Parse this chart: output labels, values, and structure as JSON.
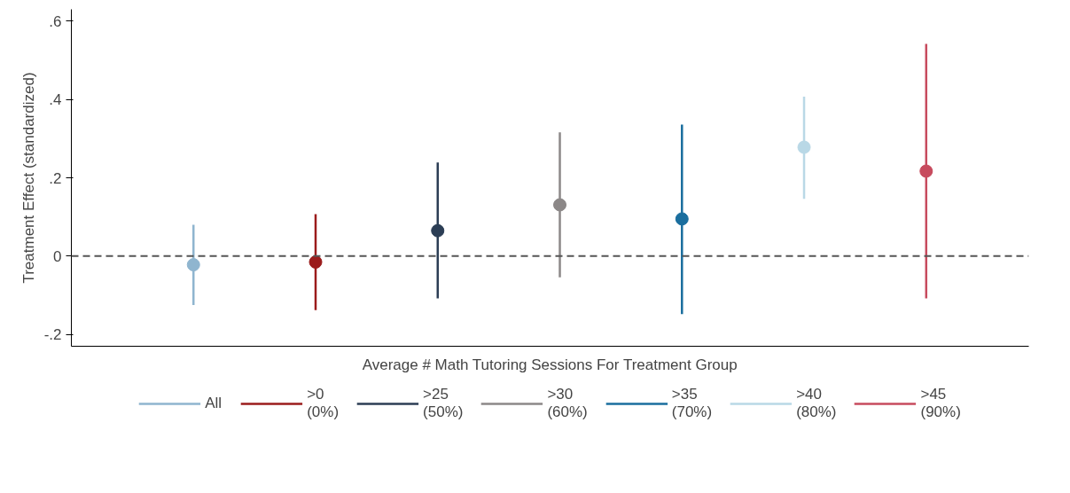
{
  "chart_data": {
    "type": "scatter",
    "xlabel": "Average # Math Tutoring Sessions For Treatment Group",
    "ylabel": "Treatment Effect (standardized)",
    "categories": [
      null,
      null,
      null,
      null,
      null,
      null,
      null
    ],
    "series": [
      {
        "name": "All",
        "color": "#8fb5cf",
        "values": [
          -0.022,
          null,
          null,
          null,
          null,
          null,
          null
        ],
        "errors": [
          [
            -0.125,
            0.08
          ],
          null,
          null,
          null,
          null,
          null,
          null
        ]
      },
      {
        "name": ">0\n(0%)",
        "color": "#9b1c1c",
        "values": [
          null,
          -0.015,
          null,
          null,
          null,
          null,
          null
        ],
        "errors": [
          null,
          [
            -0.138,
            0.107
          ],
          null,
          null,
          null,
          null,
          null
        ]
      },
      {
        "name": ">25\n(50%)",
        "color": "#2c3e55",
        "values": [
          null,
          null,
          0.065,
          null,
          null,
          null,
          null
        ],
        "errors": [
          null,
          null,
          [
            -0.108,
            0.239
          ],
          null,
          null,
          null,
          null
        ]
      },
      {
        "name": ">30\n(60%)",
        "color": "#8c8888",
        "values": [
          null,
          null,
          null,
          0.131,
          null,
          null,
          null
        ],
        "errors": [
          null,
          null,
          null,
          [
            -0.054,
            0.316
          ],
          null,
          null,
          null
        ]
      },
      {
        "name": ">35\n(70%)",
        "color": "#1a6e9e",
        "values": [
          null,
          null,
          null,
          null,
          0.095,
          null,
          null
        ],
        "errors": [
          null,
          null,
          null,
          null,
          [
            -0.148,
            0.336
          ],
          null,
          null
        ]
      },
      {
        "name": ">40\n(80%)",
        "color": "#b9d8e6",
        "values": [
          null,
          null,
          null,
          null,
          null,
          0.278,
          null
        ],
        "errors": [
          null,
          null,
          null,
          null,
          null,
          [
            0.146,
            0.407
          ],
          null
        ]
      },
      {
        "name": ">45\n(90%)",
        "color": "#c74b5e",
        "values": [
          null,
          null,
          null,
          null,
          null,
          null,
          0.217
        ],
        "errors": [
          null,
          null,
          null,
          null,
          null,
          null,
          [
            -0.108,
            0.542
          ]
        ]
      }
    ],
    "ylim": [
      -0.23,
      0.63
    ],
    "yticks": [
      {
        "value": -0.2,
        "label": "-.2"
      },
      0,
      {
        "value": 0.2,
        "label": ".2"
      },
      {
        "value": 0.4,
        "label": ".4"
      },
      {
        "value": 0.6,
        "label": ".6"
      }
    ],
    "ref_lines": [
      {
        "axis": "y",
        "value": 0,
        "label": null,
        "color": "#555555",
        "line_style": "dashed"
      }
    ],
    "grid": false,
    "legend": "bottom",
    "marker": "circle"
  }
}
